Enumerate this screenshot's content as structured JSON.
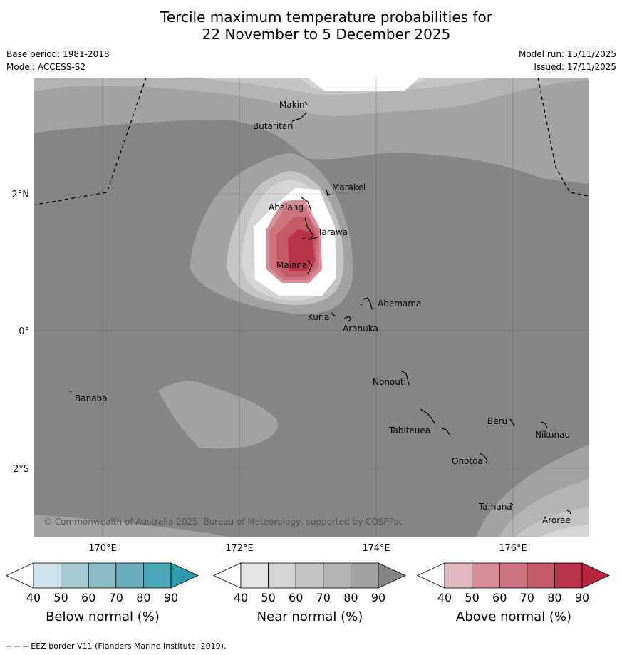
{
  "title_line1": "Tercile maximum temperature probabilities for",
  "title_line2": "22 November to 5 December 2025",
  "base_period": "Base period: 1981-2018",
  "model": "Model: ACCESS-S2",
  "model_run": "Model run: 15/11/2025",
  "issued": "Issued: 17/11/2025",
  "copyright": "© Commonwealth of Australia 2025, Bureau of Meteorology, supported by COSPPac",
  "footer": "--  --  -- EEZ border V11 (Flanders Marine Institute, 2019).",
  "lat_labels": [
    "2°N",
    "0°",
    "2°S"
  ],
  "lon_labels": [
    "170°E",
    "172°E",
    "174°E",
    "176°E"
  ],
  "islands": [
    "Makin",
    "Butaritari",
    "Marakei",
    "Abaiang",
    "Tarawa",
    "Maiana",
    "Abemama",
    "Kuria",
    "Aranuka",
    "Nonouti",
    "Banaba",
    "Tabiteuea",
    "Beru",
    "Nikunau",
    "Onotoa",
    "Tamana",
    "Arorae"
  ],
  "colorbars": [
    {
      "title": "Below normal (%)",
      "ticks": [
        "40",
        "50",
        "60",
        "70",
        "80",
        "90"
      ],
      "colors": [
        "#ffffff",
        "#cbe3ea",
        "#a6cad2",
        "#8bbbc7",
        "#6aadbd",
        "#48a6b6",
        "#2f9aad"
      ]
    },
    {
      "title": "Near normal (%)",
      "ticks": [
        "40",
        "50",
        "60",
        "70",
        "80",
        "90"
      ],
      "colors": [
        "#ffffff",
        "#e6e6e6",
        "#d4d4d4",
        "#c4c4c4",
        "#b3b3b3",
        "#a2a2a2",
        "#858585"
      ]
    },
    {
      "title": "Above normal (%)",
      "ticks": [
        "40",
        "50",
        "60",
        "70",
        "80",
        "90"
      ],
      "colors": [
        "#ffffff",
        "#e3b8c0",
        "#d88e98",
        "#cc737f",
        "#c35b69",
        "#b8334a",
        "#b8233f"
      ]
    }
  ]
}
